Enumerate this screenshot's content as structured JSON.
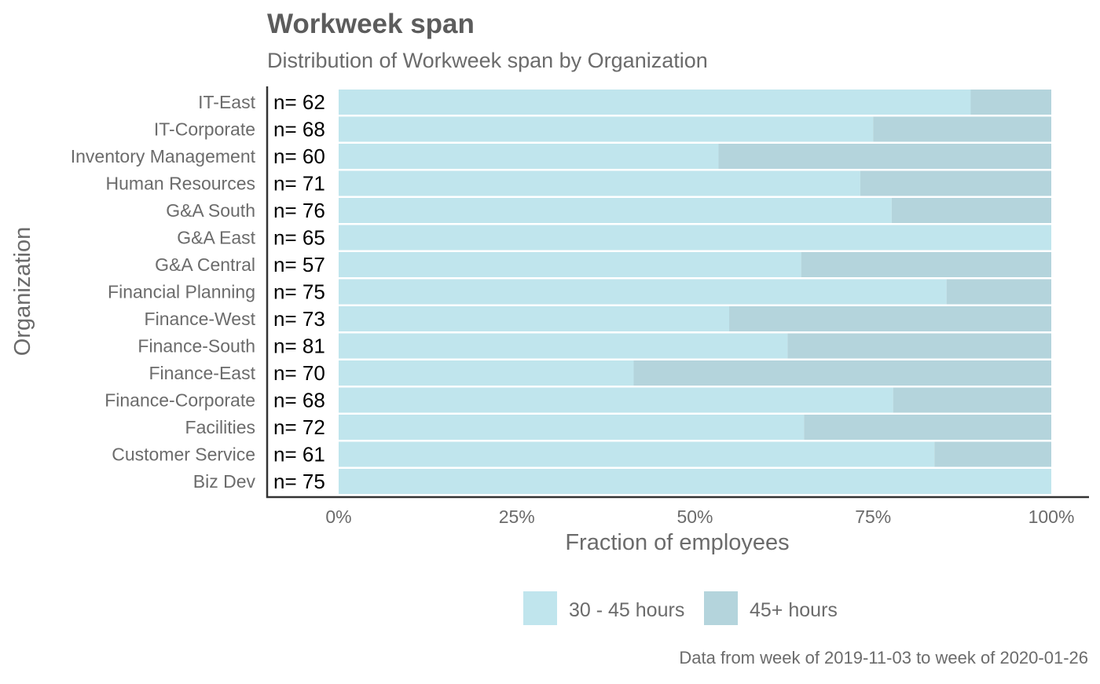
{
  "chart_data": {
    "type": "bar",
    "orientation": "horizontal",
    "stacked": true,
    "percent_stacked": true,
    "title": "Workweek span",
    "subtitle": "Distribution of Workweek span by Organization",
    "xlabel": "Fraction of employees",
    "ylabel": "Organization",
    "xlim": [
      0,
      1
    ],
    "x_ticks": [
      "0%",
      "25%",
      "50%",
      "75%",
      "100%"
    ],
    "x_tick_values": [
      0,
      0.25,
      0.5,
      0.75,
      1.0
    ],
    "grid": false,
    "legend_position": "bottom",
    "caption": "Data from week of 2019-11-03 to week of 2020-01-26",
    "categories": [
      "IT-East",
      "IT-Corporate",
      "Inventory Management",
      "Human Resources",
      "G&A South",
      "G&A East",
      "G&A Central",
      "Financial Planning",
      "Finance-West",
      "Finance-South",
      "Finance-East",
      "Finance-Corporate",
      "Facilities",
      "Customer Service",
      "Biz Dev"
    ],
    "n_labels": [
      "n= 62",
      "n= 68",
      "n= 60",
      "n= 71",
      "n= 76",
      "n= 65",
      "n= 57",
      "n= 75",
      "n= 73",
      "n= 81",
      "n= 70",
      "n= 68",
      "n= 72",
      "n= 61",
      "n= 75"
    ],
    "series": [
      {
        "name": "30 - 45 hours",
        "color": "#c0e5ed",
        "values": [
          0.887,
          0.75,
          0.533,
          0.732,
          0.776,
          1.0,
          0.649,
          0.853,
          0.548,
          0.63,
          0.414,
          0.778,
          0.653,
          0.836,
          1.0
        ]
      },
      {
        "name": "45+ hours",
        "color": "#b4d4dc",
        "values": [
          0.113,
          0.25,
          0.467,
          0.268,
          0.224,
          0.0,
          0.351,
          0.147,
          0.452,
          0.37,
          0.586,
          0.222,
          0.347,
          0.164,
          0.0
        ]
      }
    ]
  }
}
